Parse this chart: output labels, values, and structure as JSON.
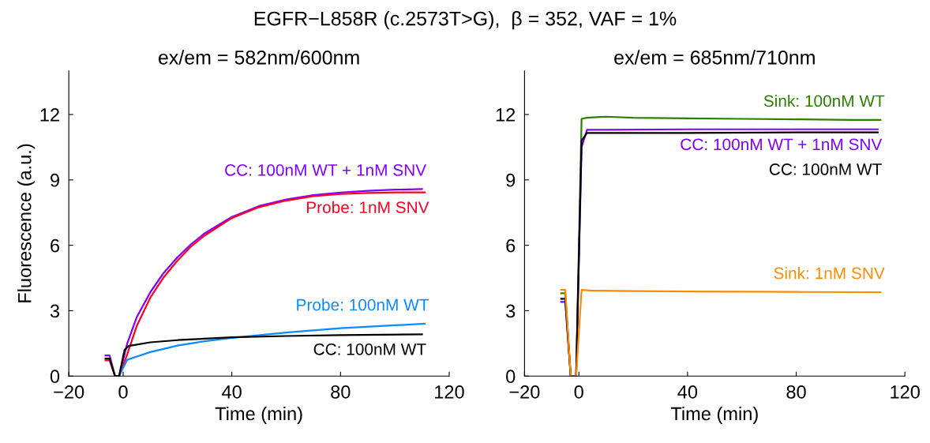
{
  "chart_data": [
    {
      "type": "line",
      "title": "ex/em = 582nm/600nm",
      "xlabel": "Time (min)",
      "ylabel": "Fluorescence (a.u.)",
      "annotations": [
        "EGFR−L858R (c.2573T>G),  β = 352, VAF = 1%"
      ],
      "xlim": [
        -20,
        120
      ],
      "xticks": [
        {
          "value": -20,
          "label": "−20"
        },
        0,
        40,
        80,
        120
      ],
      "ylim": [
        0,
        14
      ],
      "yticks": [
        0,
        3,
        6,
        9,
        12
      ],
      "grid": false,
      "legend": false,
      "marker": "none",
      "line_style": "solid",
      "series": [
        {
          "name": "CC: 100nM WT + 1nM SNV",
          "color": "#8000ff",
          "x": [
            -6.5,
            -5,
            -3,
            -1.5,
            1.5,
            5,
            10,
            15,
            20,
            25,
            30,
            40,
            50,
            60,
            70,
            80,
            90,
            100,
            110
          ],
          "values": [
            0.95,
            0.95,
            0,
            0,
            1.5,
            2.7,
            3.85,
            4.75,
            5.45,
            6.05,
            6.55,
            7.3,
            7.8,
            8.1,
            8.3,
            8.42,
            8.5,
            8.55,
            8.58
          ]
        },
        {
          "name": "Probe: 1nM SNV",
          "color": "#ff0022",
          "x": [
            -6.5,
            -5,
            -3,
            -1.5,
            1.5,
            5,
            10,
            15,
            20,
            25,
            30,
            40,
            50,
            60,
            70,
            80,
            90,
            100,
            111
          ],
          "values": [
            0.72,
            0.72,
            0,
            0,
            1.0,
            2.3,
            3.6,
            4.55,
            5.3,
            5.95,
            6.45,
            7.25,
            7.75,
            8.05,
            8.25,
            8.35,
            8.4,
            8.43,
            8.43
          ]
        },
        {
          "name": "Probe: 100nM WT",
          "color": "#0a8cff",
          "x": [
            -3,
            -1.5,
            1.5,
            5,
            10,
            20,
            30,
            40,
            60,
            80,
            100,
            111
          ],
          "values": [
            0,
            0,
            0.75,
            0.9,
            1.1,
            1.4,
            1.6,
            1.75,
            2.0,
            2.2,
            2.33,
            2.4
          ]
        },
        {
          "name": "CC: 100nM WT",
          "color": "#000000",
          "x": [
            -6.5,
            -5,
            -3,
            -1.5,
            0.5,
            2,
            10,
            20,
            40,
            60,
            80,
            110
          ],
          "values": [
            0.8,
            0.8,
            0,
            0,
            1.2,
            1.38,
            1.55,
            1.65,
            1.78,
            1.84,
            1.88,
            1.92
          ]
        }
      ]
    },
    {
      "type": "line",
      "title": "ex/em = 685nm/710nm",
      "xlabel": "Time (min)",
      "xlim": [
        -20,
        120
      ],
      "xticks": [
        {
          "value": -20,
          "label": "−20"
        },
        0,
        40,
        80,
        120
      ],
      "ylim": [
        0,
        14
      ],
      "yticks": [
        0,
        3,
        6,
        9,
        12
      ],
      "grid": false,
      "legend": false,
      "marker": "none",
      "line_style": "solid",
      "series": [
        {
          "name": "Sink: 100nM WT",
          "color": "#2a8000",
          "x": [
            -6.5,
            -5,
            -3,
            -1,
            1,
            3,
            10,
            20,
            40,
            60,
            80,
            100,
            111
          ],
          "values": [
            3.8,
            3.8,
            0,
            0,
            11.8,
            11.85,
            11.9,
            11.85,
            11.82,
            11.8,
            11.78,
            11.75,
            11.75
          ]
        },
        {
          "name": "CC: 100nM WT + 1nM SNV",
          "color": "#8000ff",
          "x": [
            -6.5,
            -5,
            -3,
            -1,
            1,
            3,
            10,
            40,
            80,
            110
          ],
          "values": [
            3.4,
            3.4,
            0,
            0,
            10.5,
            11.3,
            11.3,
            11.32,
            11.32,
            11.32
          ]
        },
        {
          "name": "CC: 100nM WT",
          "color": "#000000",
          "x": [
            -6.5,
            -5,
            -3,
            -1,
            1,
            3,
            10,
            40,
            80,
            110
          ],
          "values": [
            3.55,
            3.55,
            0,
            0,
            10.8,
            11.15,
            11.15,
            11.15,
            11.18,
            11.18
          ]
        },
        {
          "name": "Sink: 1nM SNV",
          "color": "#ff8c00",
          "x": [
            -6.5,
            -5,
            -3,
            -1,
            1,
            5,
            20,
            40,
            80,
            111
          ],
          "values": [
            3.95,
            3.95,
            0,
            0,
            3.95,
            3.92,
            3.9,
            3.88,
            3.86,
            3.85
          ]
        }
      ]
    }
  ]
}
